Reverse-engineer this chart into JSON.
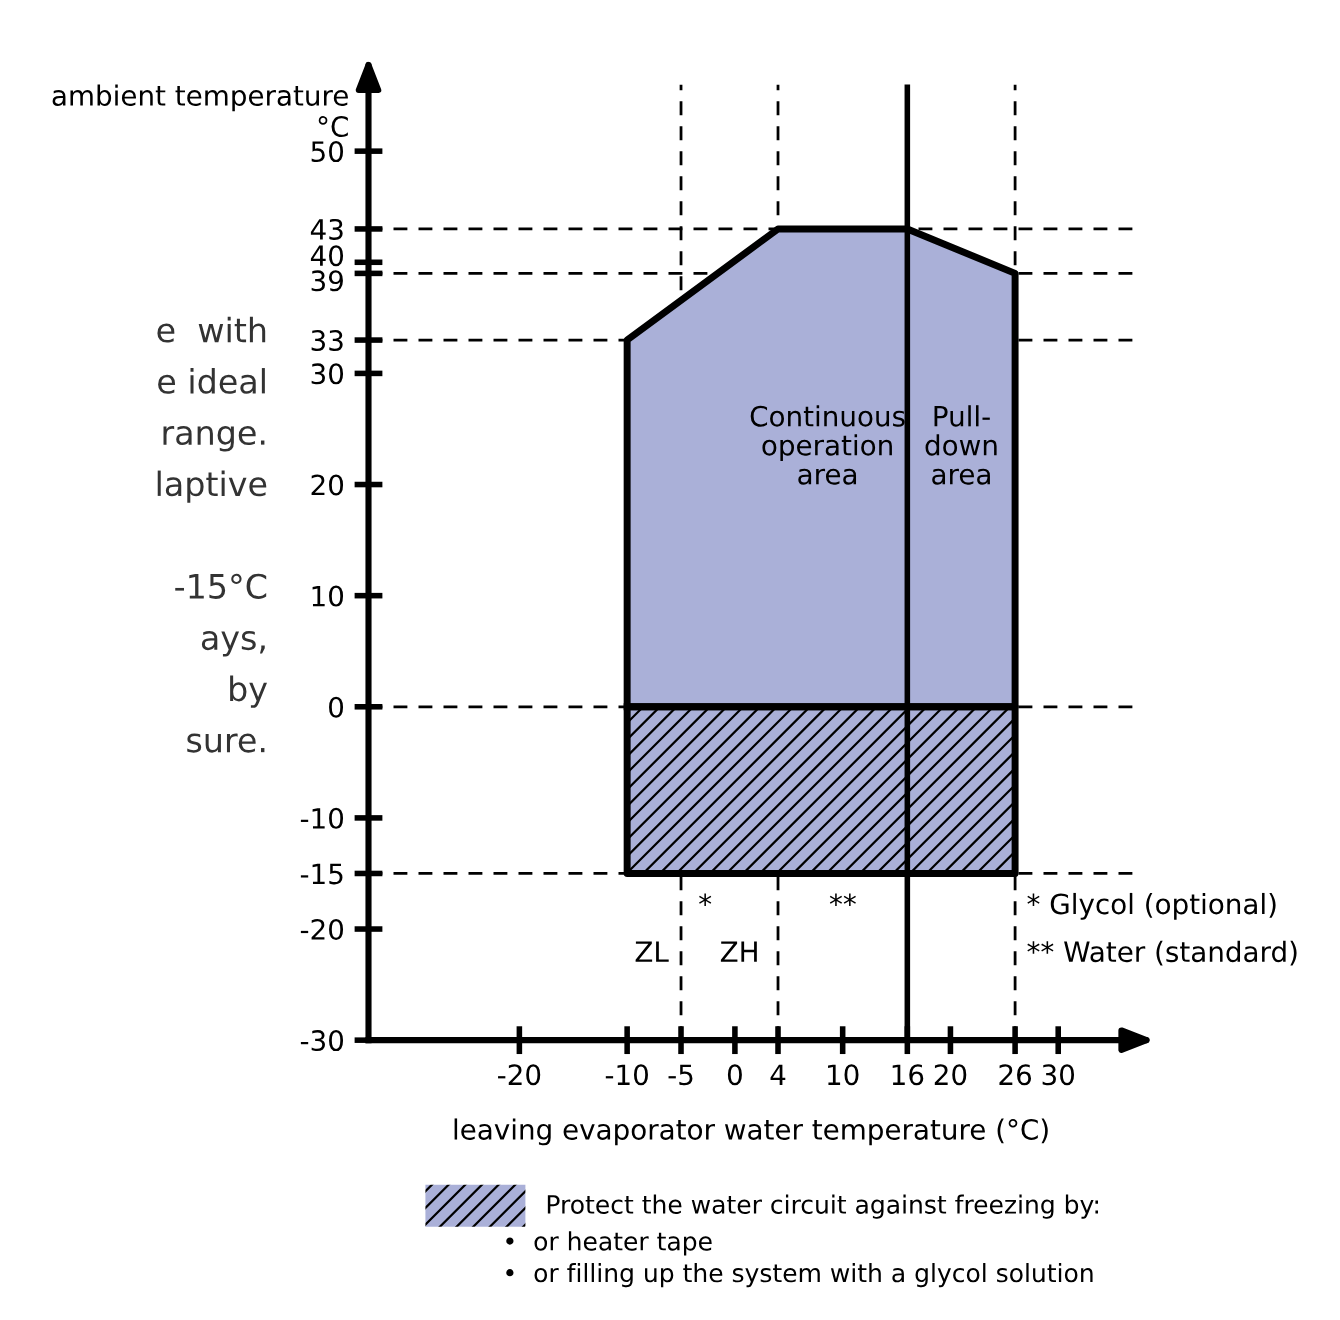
{
  "chart_data": {
    "type": "area",
    "xlabel": "leaving evaporator water temperature (°C)",
    "ylabel": "ambient temperature\n°C",
    "series": [
      {
        "x": [
          -10,
          4,
          16,
          26
        ],
        "values": [
          33,
          43,
          43,
          39
        ],
        "color": "#aab0d8"
      },
      {
        "name": "Protect the water circuit against freezing by:",
        "x": [
          -10,
          26
        ],
        "values": [
          -15,
          -15
        ],
        "color": "#aab0d8"
      }
    ],
    "xlim": [
      -34,
      37
    ],
    "ylim": [
      -30,
      56
    ],
    "xticks": [
      -20,
      -10,
      -5,
      0,
      4,
      10,
      16,
      20,
      26,
      30
    ],
    "yticks": [
      -30,
      -20,
      -15,
      -10,
      0,
      10,
      20,
      30,
      33,
      39,
      40,
      43,
      50
    ],
    "ref_lines": [
      {
        "axis": "y",
        "value": 43,
        "line_style": "dashed"
      },
      {
        "axis": "y",
        "value": 39,
        "line_style": "dashed"
      },
      {
        "axis": "y",
        "value": 33,
        "line_style": "dashed"
      },
      {
        "axis": "y",
        "value": 0,
        "line_style": "dashed"
      },
      {
        "axis": "y",
        "value": -15,
        "line_style": "dashed"
      },
      {
        "axis": "x",
        "value": -5,
        "line_style": "dashed"
      },
      {
        "axis": "x",
        "value": 4,
        "line_style": "dashed"
      },
      {
        "axis": "x",
        "value": 26,
        "line_style": "dashed"
      },
      {
        "axis": "x",
        "value": 16,
        "line_style": "solid"
      }
    ],
    "annotations": [
      "Continuous\noperation\narea",
      "Pull-\ndown\narea",
      "*",
      "**",
      "ZL",
      "ZH",
      "* Glycol (optional)",
      "** Water (standard)",
      "•  or heater tape",
      "•  or filling up the system with a glycol solution",
      "e  with\ne ideal\nrange.\nlaptive\n\n-15°C\nays,\nby\nsure."
    ],
    "legend": "bottom",
    "grid": false
  }
}
